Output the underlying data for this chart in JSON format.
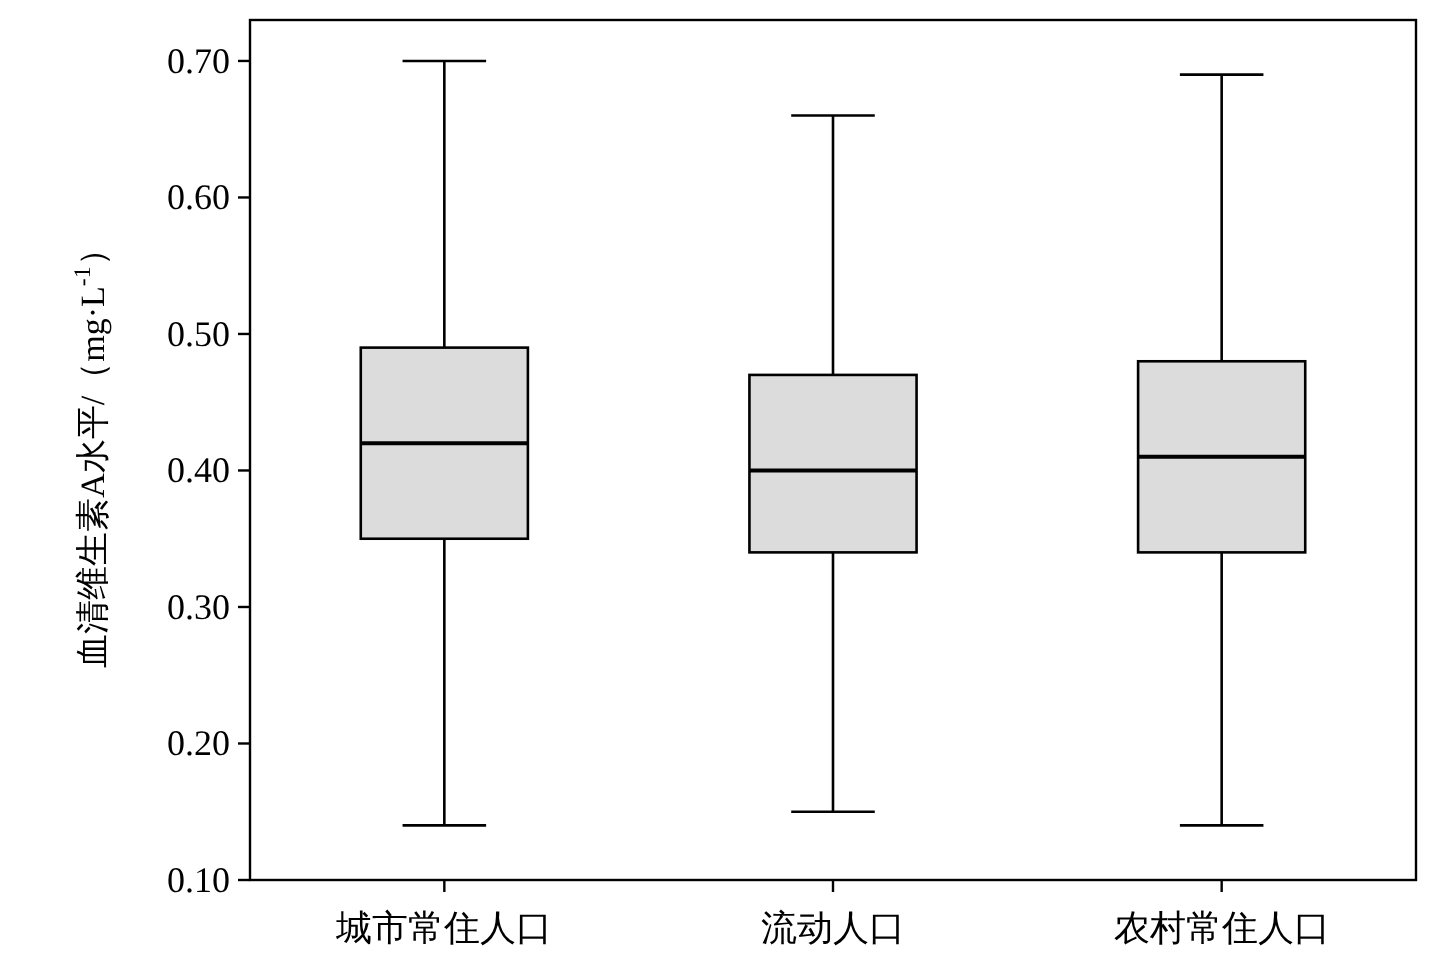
{
  "chart_data": {
    "type": "box",
    "ylabel": "血清维生素A水平/（mg·L$^{-1}$）",
    "categories": [
      "城市常住人口",
      "流动人口",
      "农村常住人口"
    ],
    "boxes": [
      {
        "low": 0.14,
        "q1": 0.35,
        "median": 0.42,
        "q3": 0.49,
        "high": 0.7
      },
      {
        "low": 0.15,
        "q1": 0.34,
        "median": 0.4,
        "q3": 0.47,
        "high": 0.66
      },
      {
        "low": 0.14,
        "q1": 0.34,
        "median": 0.41,
        "q3": 0.48,
        "high": 0.69
      }
    ],
    "color": "#dcdcdc",
    "ylim": [
      0.1,
      0.73
    ],
    "yticks": [
      {
        "value": 0.1,
        "label": "0.10"
      },
      {
        "value": 0.2,
        "label": "0.20"
      },
      {
        "value": 0.3,
        "label": "0.30"
      },
      {
        "value": 0.4,
        "label": "0.40"
      },
      {
        "value": 0.5,
        "label": "0.50"
      },
      {
        "value": 0.6,
        "label": "0.60"
      },
      {
        "value": 0.7,
        "label": "0.70"
      }
    ],
    "grid": false
  }
}
